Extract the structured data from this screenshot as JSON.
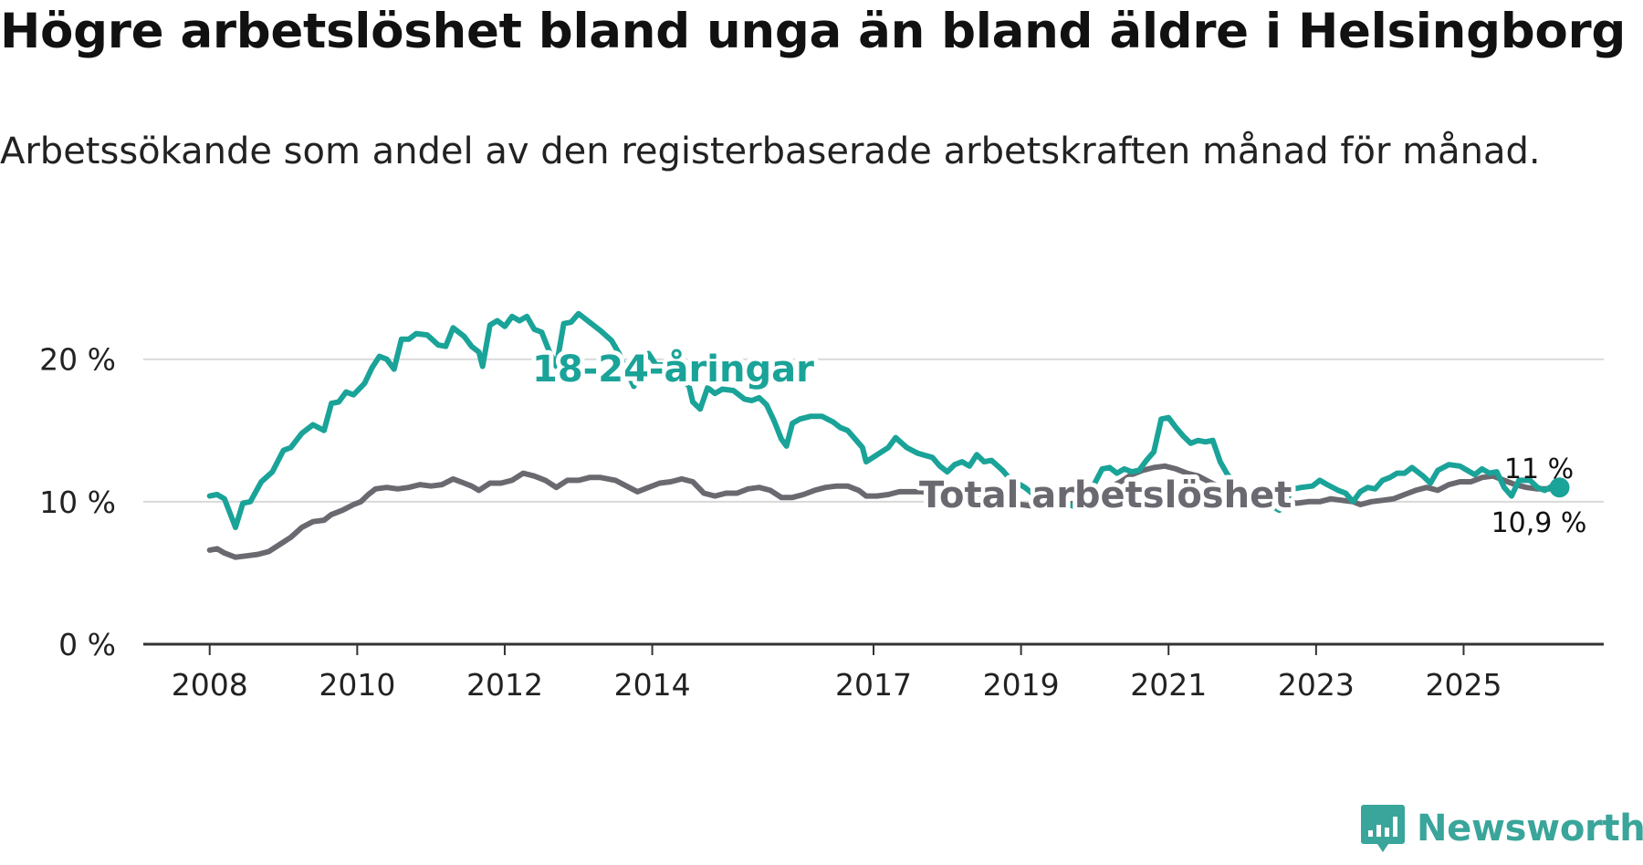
{
  "title": "Högre arbetslöshet bland unga än bland äldre i Helsingborg",
  "subtitle": "Arbetssökande som andel av den registerbaserade arbetskraften månad för månad.",
  "brand": "Newsworthy",
  "colors": {
    "youth": "#1aa398",
    "total": "#6b6970",
    "axis": "#333333",
    "grid": "#d9d9d9",
    "brand": "#3aa59a"
  },
  "chart_data": {
    "type": "line",
    "title": "Högre arbetslöshet bland unga än bland äldre i Helsingborg",
    "ylim": [
      0,
      26
    ],
    "xlim": [
      2007.1,
      2026.9
    ],
    "y_ticks": [
      0,
      10,
      20
    ],
    "y_tick_labels": [
      "0 %",
      "10 %",
      "20 %"
    ],
    "x_ticks": [
      2008,
      2010,
      2012,
      2014,
      2017,
      2019,
      2021,
      2023,
      2025
    ],
    "x_tick_labels": [
      "2008",
      "2010",
      "2012",
      "2014",
      "2017",
      "2019",
      "2021",
      "2023",
      "2025"
    ],
    "grid": true,
    "series": [
      {
        "name": "18-24-åringar",
        "label": "18-24-åringar",
        "end_label": "11 %",
        "points": [
          [
            2008.0,
            10.4
          ],
          [
            2008.1,
            10.5
          ],
          [
            2008.2,
            10.2
          ],
          [
            2008.35,
            8.2
          ],
          [
            2008.45,
            9.9
          ],
          [
            2008.55,
            10.0
          ],
          [
            2008.7,
            11.4
          ],
          [
            2008.85,
            12.1
          ],
          [
            2009.0,
            13.6
          ],
          [
            2009.1,
            13.8
          ],
          [
            2009.25,
            14.8
          ],
          [
            2009.4,
            15.4
          ],
          [
            2009.55,
            15.0
          ],
          [
            2009.65,
            16.9
          ],
          [
            2009.75,
            17.0
          ],
          [
            2009.85,
            17.7
          ],
          [
            2009.95,
            17.5
          ],
          [
            2010.1,
            18.3
          ],
          [
            2010.2,
            19.4
          ],
          [
            2010.3,
            20.2
          ],
          [
            2010.4,
            20.0
          ],
          [
            2010.5,
            19.3
          ],
          [
            2010.6,
            21.4
          ],
          [
            2010.7,
            21.4
          ],
          [
            2010.8,
            21.8
          ],
          [
            2010.95,
            21.7
          ],
          [
            2011.1,
            21.0
          ],
          [
            2011.2,
            20.9
          ],
          [
            2011.3,
            22.2
          ],
          [
            2011.45,
            21.6
          ],
          [
            2011.55,
            20.9
          ],
          [
            2011.65,
            20.5
          ],
          [
            2011.7,
            19.5
          ],
          [
            2011.8,
            22.4
          ],
          [
            2011.9,
            22.7
          ],
          [
            2012.0,
            22.3
          ],
          [
            2012.1,
            23.0
          ],
          [
            2012.2,
            22.7
          ],
          [
            2012.3,
            23.0
          ],
          [
            2012.4,
            22.1
          ],
          [
            2012.5,
            21.9
          ],
          [
            2012.6,
            20.6
          ],
          [
            2012.7,
            19.5
          ],
          [
            2012.8,
            22.5
          ],
          [
            2012.9,
            22.6
          ],
          [
            2013.0,
            23.2
          ],
          [
            2013.15,
            22.6
          ],
          [
            2013.3,
            22.0
          ],
          [
            2013.45,
            21.3
          ],
          [
            2013.55,
            20.4
          ],
          [
            2013.65,
            19.2
          ],
          [
            2013.75,
            18.1
          ],
          [
            2013.85,
            19.5
          ],
          [
            2013.95,
            20.4
          ],
          [
            2014.05,
            19.6
          ],
          [
            2014.15,
            19.6
          ],
          [
            2014.3,
            19.3
          ],
          [
            2014.4,
            18.6
          ],
          [
            2014.5,
            18.1
          ],
          [
            2014.55,
            17.0
          ],
          [
            2014.65,
            16.5
          ],
          [
            2014.75,
            18.0
          ],
          [
            2014.85,
            17.6
          ],
          [
            2014.95,
            17.9
          ],
          [
            2015.1,
            17.8
          ],
          [
            2015.25,
            17.2
          ],
          [
            2015.35,
            17.1
          ],
          [
            2015.45,
            17.3
          ],
          [
            2015.55,
            16.8
          ],
          [
            2015.65,
            15.7
          ],
          [
            2015.75,
            14.4
          ],
          [
            2015.82,
            13.9
          ],
          [
            2015.9,
            15.5
          ],
          [
            2016.0,
            15.8
          ],
          [
            2016.15,
            16.0
          ],
          [
            2016.3,
            16.0
          ],
          [
            2016.45,
            15.6
          ],
          [
            2016.55,
            15.2
          ],
          [
            2016.65,
            15.0
          ],
          [
            2016.75,
            14.4
          ],
          [
            2016.85,
            13.8
          ],
          [
            2016.9,
            12.8
          ],
          [
            2017.05,
            13.3
          ],
          [
            2017.2,
            13.8
          ],
          [
            2017.3,
            14.5
          ],
          [
            2017.45,
            13.8
          ],
          [
            2017.6,
            13.4
          ],
          [
            2017.8,
            13.1
          ],
          [
            2017.9,
            12.5
          ],
          [
            2018.0,
            12.1
          ],
          [
            2018.1,
            12.6
          ],
          [
            2018.2,
            12.8
          ],
          [
            2018.3,
            12.5
          ],
          [
            2018.4,
            13.3
          ],
          [
            2018.5,
            12.8
          ],
          [
            2018.6,
            12.9
          ],
          [
            2018.75,
            12.2
          ],
          [
            2018.85,
            11.6
          ],
          [
            2018.95,
            11.3
          ],
          [
            2019.05,
            11.0
          ],
          [
            2019.15,
            10.6
          ],
          [
            2019.3,
            10.7
          ],
          [
            2019.4,
            10.5
          ],
          [
            2019.5,
            10.3
          ],
          [
            2019.6,
            9.9
          ],
          [
            2019.7,
            9.7
          ],
          [
            2019.8,
            9.9
          ],
          [
            2019.9,
            10.6
          ],
          [
            2020.0,
            11.3
          ],
          [
            2020.1,
            12.3
          ],
          [
            2020.2,
            12.4
          ],
          [
            2020.3,
            12.0
          ],
          [
            2020.4,
            12.3
          ],
          [
            2020.5,
            12.1
          ],
          [
            2020.6,
            12.2
          ],
          [
            2020.7,
            12.9
          ],
          [
            2020.8,
            13.5
          ],
          [
            2020.9,
            15.8
          ],
          [
            2021.0,
            15.9
          ],
          [
            2021.1,
            15.2
          ],
          [
            2021.2,
            14.6
          ],
          [
            2021.3,
            14.1
          ],
          [
            2021.4,
            14.3
          ],
          [
            2021.5,
            14.2
          ],
          [
            2021.6,
            14.3
          ],
          [
            2021.7,
            12.8
          ],
          [
            2021.8,
            11.9
          ],
          [
            2021.9,
            11.3
          ],
          [
            2022.0,
            10.8
          ],
          [
            2022.1,
            10.5
          ],
          [
            2022.2,
            10.3
          ],
          [
            2022.3,
            10.0
          ],
          [
            2022.4,
            9.7
          ],
          [
            2022.5,
            9.4
          ],
          [
            2022.6,
            10.2
          ],
          [
            2022.7,
            10.9
          ],
          [
            2022.8,
            11.0
          ],
          [
            2022.95,
            11.1
          ],
          [
            2023.05,
            11.5
          ],
          [
            2023.15,
            11.2
          ],
          [
            2023.3,
            10.8
          ],
          [
            2023.4,
            10.6
          ],
          [
            2023.5,
            10.0
          ],
          [
            2023.6,
            10.7
          ],
          [
            2023.7,
            11.0
          ],
          [
            2023.8,
            10.9
          ],
          [
            2023.9,
            11.5
          ],
          [
            2024.0,
            11.7
          ],
          [
            2024.1,
            12.0
          ],
          [
            2024.2,
            12.0
          ],
          [
            2024.3,
            12.4
          ],
          [
            2024.45,
            11.8
          ],
          [
            2024.55,
            11.3
          ],
          [
            2024.65,
            12.2
          ],
          [
            2024.8,
            12.6
          ],
          [
            2024.95,
            12.5
          ],
          [
            2025.05,
            12.2
          ],
          [
            2025.15,
            11.9
          ],
          [
            2025.25,
            12.3
          ],
          [
            2025.35,
            12.0
          ],
          [
            2025.45,
            12.1
          ],
          [
            2025.55,
            11.0
          ],
          [
            2025.65,
            10.4
          ],
          [
            2025.75,
            11.5
          ],
          [
            2025.9,
            11.5
          ],
          [
            2026.0,
            11.0
          ],
          [
            2026.1,
            10.8
          ],
          [
            2026.2,
            11.1
          ],
          [
            2026.3,
            11.0
          ]
        ]
      },
      {
        "name": "Total arbetslöshet",
        "label": "Total arbetslöshet",
        "end_label": "10,9 %",
        "points": [
          [
            2008.0,
            6.6
          ],
          [
            2008.1,
            6.7
          ],
          [
            2008.2,
            6.4
          ],
          [
            2008.35,
            6.1
          ],
          [
            2008.5,
            6.2
          ],
          [
            2008.65,
            6.3
          ],
          [
            2008.8,
            6.5
          ],
          [
            2008.95,
            7.0
          ],
          [
            2009.1,
            7.5
          ],
          [
            2009.25,
            8.2
          ],
          [
            2009.4,
            8.6
          ],
          [
            2009.55,
            8.7
          ],
          [
            2009.65,
            9.1
          ],
          [
            2009.8,
            9.4
          ],
          [
            2009.95,
            9.8
          ],
          [
            2010.05,
            10.0
          ],
          [
            2010.15,
            10.5
          ],
          [
            2010.25,
            10.9
          ],
          [
            2010.4,
            11.0
          ],
          [
            2010.55,
            10.9
          ],
          [
            2010.7,
            11.0
          ],
          [
            2010.85,
            11.2
          ],
          [
            2011.0,
            11.1
          ],
          [
            2011.15,
            11.2
          ],
          [
            2011.3,
            11.6
          ],
          [
            2011.45,
            11.3
          ],
          [
            2011.55,
            11.1
          ],
          [
            2011.65,
            10.8
          ],
          [
            2011.8,
            11.3
          ],
          [
            2011.95,
            11.3
          ],
          [
            2012.1,
            11.5
          ],
          [
            2012.25,
            12.0
          ],
          [
            2012.4,
            11.8
          ],
          [
            2012.55,
            11.5
          ],
          [
            2012.7,
            11.0
          ],
          [
            2012.85,
            11.5
          ],
          [
            2013.0,
            11.5
          ],
          [
            2013.15,
            11.7
          ],
          [
            2013.3,
            11.7
          ],
          [
            2013.5,
            11.5
          ],
          [
            2013.65,
            11.1
          ],
          [
            2013.8,
            10.7
          ],
          [
            2013.95,
            11.0
          ],
          [
            2014.1,
            11.3
          ],
          [
            2014.25,
            11.4
          ],
          [
            2014.4,
            11.6
          ],
          [
            2014.55,
            11.4
          ],
          [
            2014.7,
            10.6
          ],
          [
            2014.85,
            10.4
          ],
          [
            2015.0,
            10.6
          ],
          [
            2015.15,
            10.6
          ],
          [
            2015.3,
            10.9
          ],
          [
            2015.45,
            11.0
          ],
          [
            2015.6,
            10.8
          ],
          [
            2015.75,
            10.3
          ],
          [
            2015.9,
            10.3
          ],
          [
            2016.05,
            10.5
          ],
          [
            2016.2,
            10.8
          ],
          [
            2016.35,
            11.0
          ],
          [
            2016.5,
            11.1
          ],
          [
            2016.65,
            11.1
          ],
          [
            2016.8,
            10.8
          ],
          [
            2016.9,
            10.4
          ],
          [
            2017.05,
            10.4
          ],
          [
            2017.2,
            10.5
          ],
          [
            2017.35,
            10.7
          ],
          [
            2017.5,
            10.7
          ],
          [
            2017.65,
            10.7
          ],
          [
            2017.8,
            10.6
          ],
          [
            2017.95,
            10.5
          ],
          [
            2018.1,
            10.6
          ],
          [
            2018.25,
            10.7
          ],
          [
            2018.4,
            10.6
          ],
          [
            2018.55,
            10.3
          ],
          [
            2018.7,
            10.1
          ],
          [
            2018.85,
            9.9
          ],
          [
            2019.0,
            9.8
          ],
          [
            2019.15,
            9.7
          ],
          [
            2019.3,
            9.7
          ],
          [
            2019.45,
            9.8
          ],
          [
            2019.6,
            9.8
          ],
          [
            2019.75,
            9.9
          ],
          [
            2019.9,
            10.2
          ],
          [
            2020.05,
            10.6
          ],
          [
            2020.2,
            11.0
          ],
          [
            2020.35,
            11.4
          ],
          [
            2020.5,
            11.9
          ],
          [
            2020.65,
            12.2
          ],
          [
            2020.8,
            12.4
          ],
          [
            2020.95,
            12.5
          ],
          [
            2021.1,
            12.3
          ],
          [
            2021.25,
            12.0
          ],
          [
            2021.4,
            11.8
          ],
          [
            2021.55,
            11.4
          ],
          [
            2021.7,
            11.0
          ],
          [
            2021.85,
            10.6
          ],
          [
            2022.0,
            10.3
          ],
          [
            2022.15,
            10.1
          ],
          [
            2022.3,
            9.9
          ],
          [
            2022.45,
            9.8
          ],
          [
            2022.6,
            9.9
          ],
          [
            2022.75,
            9.9
          ],
          [
            2022.9,
            10.0
          ],
          [
            2023.05,
            10.0
          ],
          [
            2023.2,
            10.2
          ],
          [
            2023.35,
            10.1
          ],
          [
            2023.5,
            10.0
          ],
          [
            2023.6,
            9.8
          ],
          [
            2023.75,
            10.0
          ],
          [
            2023.9,
            10.1
          ],
          [
            2024.05,
            10.2
          ],
          [
            2024.2,
            10.5
          ],
          [
            2024.35,
            10.8
          ],
          [
            2024.5,
            11.0
          ],
          [
            2024.65,
            10.8
          ],
          [
            2024.8,
            11.2
          ],
          [
            2024.95,
            11.4
          ],
          [
            2025.1,
            11.4
          ],
          [
            2025.25,
            11.7
          ],
          [
            2025.4,
            11.8
          ],
          [
            2025.55,
            11.5
          ],
          [
            2025.7,
            11.2
          ],
          [
            2025.85,
            11.0
          ],
          [
            2026.0,
            10.9
          ],
          [
            2026.15,
            10.9
          ],
          [
            2026.3,
            10.9
          ]
        ]
      }
    ]
  }
}
